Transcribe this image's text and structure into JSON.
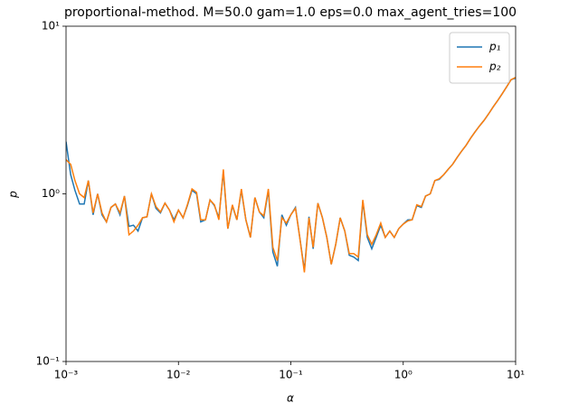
{
  "chart_data": {
    "type": "line",
    "title": "proportional-method. M=50.0 gam=1.0 eps=0.0 max_agent_tries=100",
    "xlabel": "α",
    "ylabel": "p",
    "x": [
      0.001,
      0.0011,
      0.0012,
      0.00132,
      0.00145,
      0.00158,
      0.00174,
      0.00191,
      0.00209,
      0.00229,
      0.00251,
      0.00275,
      0.00302,
      0.00331,
      0.00363,
      0.00398,
      0.00437,
      0.00479,
      0.00525,
      0.00575,
      0.00631,
      0.00692,
      0.00759,
      0.00832,
      0.00912,
      0.01,
      0.011,
      0.012,
      0.0132,
      0.0145,
      0.0158,
      0.0174,
      0.0191,
      0.0209,
      0.0229,
      0.0251,
      0.0275,
      0.0302,
      0.0331,
      0.0363,
      0.0398,
      0.0437,
      0.0479,
      0.0525,
      0.0575,
      0.0631,
      0.0692,
      0.0759,
      0.0832,
      0.0912,
      0.1,
      0.11,
      0.12,
      0.132,
      0.145,
      0.158,
      0.174,
      0.191,
      0.209,
      0.229,
      0.251,
      0.275,
      0.302,
      0.331,
      0.363,
      0.398,
      0.437,
      0.479,
      0.525,
      0.575,
      0.631,
      0.692,
      0.759,
      0.832,
      0.912,
      1,
      1.1,
      1.2,
      1.32,
      1.45,
      1.58,
      1.74,
      1.91,
      2.09,
      2.29,
      2.51,
      2.75,
      3.02,
      3.31,
      3.63,
      3.98,
      4.37,
      4.79,
      5.25,
      5.75,
      6.31,
      6.92,
      7.59,
      8.32,
      9.12,
      10
    ],
    "series": [
      {
        "name": "p₁",
        "color": "#1f77b4",
        "values": [
          2.05,
          1.3,
          1.05,
          0.87,
          0.87,
          1.2,
          0.75,
          1.0,
          0.75,
          0.68,
          0.83,
          0.87,
          0.75,
          0.97,
          0.64,
          0.65,
          0.6,
          0.72,
          0.73,
          1.0,
          0.82,
          0.77,
          0.88,
          0.8,
          0.7,
          0.8,
          0.72,
          0.85,
          1.05,
          1.0,
          0.68,
          0.7,
          0.92,
          0.85,
          0.72,
          1.35,
          0.62,
          0.85,
          0.7,
          1.05,
          0.7,
          0.55,
          0.95,
          0.78,
          0.72,
          1.05,
          0.45,
          0.37,
          0.75,
          0.65,
          0.75,
          0.83,
          0.55,
          0.35,
          0.73,
          0.47,
          0.88,
          0.72,
          0.55,
          0.38,
          0.5,
          0.72,
          0.6,
          0.43,
          0.42,
          0.4,
          0.9,
          0.55,
          0.47,
          0.55,
          0.65,
          0.55,
          0.6,
          0.55,
          0.62,
          0.66,
          0.7,
          0.7,
          0.85,
          0.83,
          0.97,
          1.0,
          1.2,
          1.22,
          1.3,
          1.4,
          1.5,
          1.65,
          1.8,
          1.95,
          2.15,
          2.35,
          2.55,
          2.75,
          3.0,
          3.3,
          3.6,
          3.95,
          4.35,
          4.8,
          4.9
        ]
      },
      {
        "name": "p₂",
        "color": "#ff7f0e",
        "values": [
          1.6,
          1.5,
          1.2,
          1.0,
          0.95,
          1.2,
          0.77,
          1.0,
          0.77,
          0.68,
          0.83,
          0.87,
          0.77,
          0.97,
          0.57,
          0.6,
          0.65,
          0.72,
          0.73,
          1.0,
          0.84,
          0.78,
          0.88,
          0.8,
          0.68,
          0.8,
          0.72,
          0.86,
          1.07,
          1.02,
          0.7,
          0.7,
          0.92,
          0.86,
          0.7,
          1.4,
          0.62,
          0.86,
          0.7,
          1.07,
          0.7,
          0.55,
          0.95,
          0.78,
          0.74,
          1.07,
          0.48,
          0.4,
          0.72,
          0.67,
          0.75,
          0.82,
          0.55,
          0.34,
          0.72,
          0.48,
          0.88,
          0.72,
          0.55,
          0.38,
          0.5,
          0.72,
          0.6,
          0.44,
          0.44,
          0.42,
          0.92,
          0.57,
          0.5,
          0.57,
          0.67,
          0.55,
          0.6,
          0.55,
          0.62,
          0.66,
          0.69,
          0.7,
          0.86,
          0.84,
          0.97,
          1.0,
          1.2,
          1.23,
          1.3,
          1.4,
          1.5,
          1.65,
          1.8,
          1.95,
          2.15,
          2.35,
          2.55,
          2.75,
          3.0,
          3.3,
          3.6,
          3.95,
          4.35,
          4.8,
          4.95
        ]
      }
    ],
    "log_x": true,
    "log_y": true,
    "xlim": [
      0.001,
      10
    ],
    "ylim": [
      0.1,
      10
    ],
    "xticks": [
      {
        "value": 0.001,
        "label": "10⁻³"
      },
      {
        "value": 0.01,
        "label": "10⁻²"
      },
      {
        "value": 0.1,
        "label": "10⁻¹"
      },
      {
        "value": 1,
        "label": "10⁰"
      },
      {
        "value": 10,
        "label": "10¹"
      }
    ],
    "yticks": [
      {
        "value": 0.1,
        "label": "10⁻¹"
      },
      {
        "value": 1,
        "label": "10⁰"
      },
      {
        "value": 10,
        "label": "10¹"
      }
    ],
    "grid": false,
    "legend": "upper right"
  }
}
